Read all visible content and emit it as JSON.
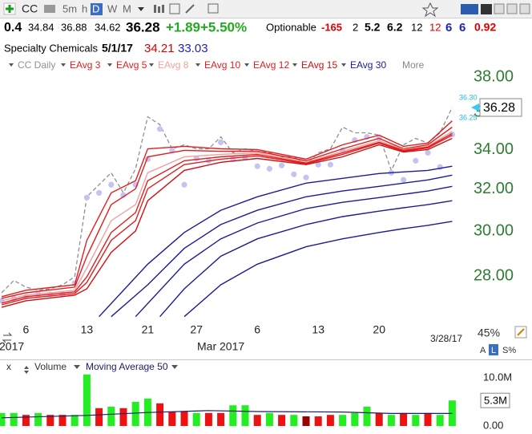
{
  "toolbar": {
    "symbol": "CC",
    "intervals": [
      "5m",
      "h",
      "D",
      "W",
      "M"
    ]
  },
  "quote": {
    "row1": [
      "0.4",
      "34.84",
      "36.88",
      "34.62",
      "36.28",
      "+1.89",
      "+5.50%",
      "Optionable",
      "-165",
      "2",
      "5.2",
      "6.2",
      "12",
      "12",
      "6",
      "6",
      "0.92"
    ],
    "row2": [
      "Specialty Chemicals",
      "5/1/17",
      "34.21",
      "33.03"
    ]
  },
  "legend_more": "More",
  "price_tags": [
    "36.30",
    "36.25"
  ],
  "side": {
    "zoom": "45%",
    "buttons": [
      "A",
      "L",
      "S%"
    ]
  },
  "volume_header": {
    "close": "x"
  },
  "chart_data": [
    {
      "type": "line",
      "log_scale": true,
      "x": [
        "2017-02-02",
        "2017-02-03",
        "2017-02-06",
        "2017-02-07",
        "2017-02-08",
        "2017-02-09",
        "2017-02-10",
        "2017-02-13",
        "2017-02-14",
        "2017-02-15",
        "2017-02-16",
        "2017-02-17",
        "2017-02-21",
        "2017-02-22",
        "2017-02-23",
        "2017-02-24",
        "2017-02-27",
        "2017-02-28",
        "2017-03-01",
        "2017-03-02",
        "2017-03-03",
        "2017-03-06",
        "2017-03-07",
        "2017-03-08",
        "2017-03-09",
        "2017-03-10",
        "2017-03-13",
        "2017-03-14",
        "2017-03-15",
        "2017-03-16",
        "2017-03-17",
        "2017-03-20",
        "2017-03-21",
        "2017-03-22",
        "2017-03-23",
        "2017-03-24",
        "2017-03-27",
        "2017-03-28"
      ],
      "xticks": [
        {
          "value": "2017-02-06",
          "label": "6"
        },
        {
          "value": "2017-02-13",
          "label": "13"
        },
        {
          "value": "2017-02-21",
          "label": "21"
        },
        {
          "value": "2017-02-27",
          "label": "27"
        },
        {
          "value": "2017-03-06",
          "label": "6"
        },
        {
          "value": "2017-03-13",
          "label": "13"
        },
        {
          "value": "2017-03-20",
          "label": "20"
        }
      ],
      "xticks_major": [
        {
          "value": "2017-02-02",
          "label": "2017"
        },
        {
          "value": "2017-03-01",
          "label": "Mar 2017"
        }
      ],
      "last_date_label": "3/28/17",
      "ylim": [
        26.3,
        39.5
      ],
      "yticks": [
        {
          "value": 28,
          "label": "28.00"
        },
        {
          "value": 30,
          "label": "30.00"
        },
        {
          "value": 32,
          "label": "32.00"
        },
        {
          "value": 34,
          "label": "34.00"
        },
        {
          "value": 36,
          "label": "36.00"
        },
        {
          "value": 38,
          "label": "38.00"
        }
      ],
      "last_value_label": "36.28",
      "series": [
        {
          "name": "CC Daily",
          "color": "#909090",
          "dash": true,
          "values": [
            27.29,
            27.81,
            27.53,
            27.4,
            27.46,
            27.63,
            27.97,
            31.63,
            32.22,
            32.82,
            31.82,
            33.02,
            35.77,
            35.33,
            34.05,
            34.26,
            34.05,
            34.05,
            34.68,
            33.84,
            34.05,
            33.92,
            33.84,
            33.63,
            33.63,
            33.23,
            33.84,
            34.05,
            35.2,
            34.9,
            34.9,
            34.77,
            32.94,
            34.26,
            34.6,
            34.35,
            34.9,
            36.28
          ]
        },
        {
          "type": "scatter",
          "color": "#c4c4f2",
          "values": [
            26.96,
            27.06,
            27.13,
            27.23,
            27.23,
            27.23,
            27.7,
            31.59,
            31.82,
            32.22,
            31.71,
            32.22,
            33.51,
            35.1,
            33.97,
            32.22,
            33.55,
            33.43,
            34.39,
            33.51,
            33.59,
            33.15,
            33.02,
            33.19,
            32.74,
            32.58,
            33.23,
            33.23,
            33.97,
            34.51,
            34.68,
            34.6,
            32.82,
            32.46,
            33.43,
            33.84,
            33.11,
            34.81
          ]
        },
        {
          "name": "EAvg 3",
          "color": "#e02020",
          "x": [
            "2017-02-02",
            "2017-02-06",
            "2017-02-10",
            "2017-02-13",
            "2017-02-15",
            "2017-02-17",
            "2017-02-21",
            "2017-02-24",
            "2017-03-01",
            "2017-03-06",
            "2017-03-10",
            "2017-03-15",
            "2017-03-20",
            "2017-03-22",
            "2017-03-24",
            "2017-03-28"
          ],
          "values": [
            27.13,
            27.4,
            27.63,
            29.58,
            31.82,
            32.42,
            34.05,
            34.18,
            34.05,
            34.01,
            33.51,
            34.26,
            34.77,
            34.18,
            34.35,
            35.54
          ]
        },
        {
          "name": "EAvg 5",
          "color": "#e02020",
          "x": [
            "2017-02-02",
            "2017-02-06",
            "2017-02-10",
            "2017-02-13",
            "2017-02-15",
            "2017-02-17",
            "2017-02-21",
            "2017-02-24",
            "2017-03-01",
            "2017-03-06",
            "2017-03-10",
            "2017-03-15",
            "2017-03-20",
            "2017-03-22",
            "2017-03-24",
            "2017-03-28"
          ],
          "values": [
            27.06,
            27.29,
            27.53,
            28.87,
            31.25,
            32.02,
            33.63,
            33.97,
            33.92,
            33.92,
            33.43,
            34.05,
            34.6,
            34.05,
            34.26,
            35.2
          ]
        },
        {
          "name": "EAvg 8",
          "color": "#f2a0a0",
          "x": [
            "2017-02-02",
            "2017-02-06",
            "2017-02-10",
            "2017-02-13",
            "2017-02-15",
            "2017-02-17",
            "2017-02-21",
            "2017-02-24",
            "2017-03-01",
            "2017-03-06",
            "2017-03-10",
            "2017-03-15",
            "2017-03-20",
            "2017-03-22",
            "2017-03-24",
            "2017-03-28"
          ],
          "values": [
            26.96,
            27.19,
            27.4,
            28.35,
            30.49,
            31.25,
            32.82,
            33.63,
            33.76,
            33.84,
            33.35,
            33.92,
            34.47,
            34.01,
            34.18,
            34.97
          ]
        },
        {
          "name": "EAvg 10",
          "color": "#e02020",
          "x": [
            "2017-02-02",
            "2017-02-06",
            "2017-02-10",
            "2017-02-13",
            "2017-02-15",
            "2017-02-17",
            "2017-02-21",
            "2017-02-24",
            "2017-03-01",
            "2017-03-06",
            "2017-03-10",
            "2017-03-15",
            "2017-03-20",
            "2017-03-22",
            "2017-03-24",
            "2017-03-28"
          ],
          "values": [
            26.86,
            27.13,
            27.33,
            27.97,
            29.94,
            30.87,
            32.42,
            33.43,
            33.63,
            33.76,
            33.31,
            33.84,
            34.39,
            33.97,
            34.14,
            34.86
          ]
        },
        {
          "name": "EAvg 12",
          "color": "#e02020",
          "x": [
            "2017-02-02",
            "2017-02-06",
            "2017-02-10",
            "2017-02-13",
            "2017-02-15",
            "2017-02-17",
            "2017-02-21",
            "2017-02-24",
            "2017-03-01",
            "2017-03-06",
            "2017-03-10",
            "2017-03-15",
            "2017-03-20",
            "2017-03-22",
            "2017-03-24",
            "2017-03-28"
          ],
          "values": [
            26.79,
            27.06,
            27.26,
            27.73,
            29.58,
            30.49,
            32.02,
            33.23,
            33.51,
            33.68,
            33.27,
            33.76,
            34.35,
            33.92,
            34.09,
            34.77
          ]
        },
        {
          "name": "EAvg 15",
          "color": "#d01010",
          "x": [
            "2017-02-02",
            "2017-02-06",
            "2017-02-10",
            "2017-02-13",
            "2017-02-15",
            "2017-02-17",
            "2017-02-21",
            "2017-02-24",
            "2017-03-01",
            "2017-03-06",
            "2017-03-10",
            "2017-03-15",
            "2017-03-20",
            "2017-03-22",
            "2017-03-24",
            "2017-03-28"
          ],
          "values": [
            26.69,
            26.96,
            27.19,
            27.46,
            29.04,
            30.01,
            31.44,
            32.94,
            33.35,
            33.55,
            33.23,
            33.63,
            34.26,
            33.88,
            34.01,
            34.6
          ]
        },
        {
          "name": "EAvg 30",
          "color": "#1c1c96",
          "x": [
            "2017-02-14",
            "2017-02-21",
            "2017-02-24",
            "2017-03-01",
            "2017-03-06",
            "2017-03-10",
            "2017-03-15",
            "2017-03-20",
            "2017-03-22",
            "2017-03-24",
            "2017-03-28"
          ],
          "values": [
            26.31,
            28.52,
            29.94,
            30.98,
            31.63,
            32.3,
            32.54,
            32.78,
            32.86,
            32.94,
            33.15
          ]
        },
        {
          "color": "#1c1c96",
          "x": [
            "2017-02-15",
            "2017-02-21",
            "2017-02-24",
            "2017-03-01",
            "2017-03-06",
            "2017-03-10",
            "2017-03-15",
            "2017-03-20",
            "2017-03-22",
            "2017-03-24",
            "2017-03-28"
          ],
          "values": [
            26.31,
            27.63,
            29.22,
            30.31,
            30.98,
            31.63,
            31.91,
            32.14,
            32.3,
            32.46,
            32.7
          ]
        },
        {
          "color": "#1c1c96",
          "x": [
            "2017-02-17",
            "2017-02-24",
            "2017-03-01",
            "2017-03-06",
            "2017-03-10",
            "2017-03-15",
            "2017-03-20",
            "2017-03-22",
            "2017-03-24",
            "2017-03-28"
          ],
          "values": [
            26.31,
            28.52,
            29.65,
            30.38,
            31.06,
            31.36,
            31.59,
            31.75,
            31.91,
            32.14
          ]
        },
        {
          "color": "#1c1c96",
          "x": [
            "2017-02-22",
            "2017-02-24",
            "2017-03-01",
            "2017-03-06",
            "2017-03-10",
            "2017-03-15",
            "2017-03-20",
            "2017-03-22",
            "2017-03-24",
            "2017-03-28"
          ],
          "values": [
            26.31,
            27.46,
            28.87,
            29.65,
            30.31,
            30.68,
            30.94,
            31.1,
            31.25,
            31.44
          ]
        },
        {
          "color": "#1c1c96",
          "x": [
            "2017-02-24",
            "2017-03-01",
            "2017-03-06",
            "2017-03-10",
            "2017-03-15",
            "2017-03-20",
            "2017-03-22",
            "2017-03-24",
            "2017-03-28"
          ],
          "values": [
            26.31,
            27.63,
            28.52,
            29.29,
            29.65,
            29.94,
            30.12,
            30.27,
            30.46
          ]
        }
      ]
    },
    {
      "type": "bar",
      "title": "Volume",
      "values": [
        2700000,
        2700000,
        2300000,
        2700000,
        2300000,
        2300000,
        2300000,
        10700000,
        3700000,
        4000000,
        3700000,
        5000000,
        5700000,
        4700000,
        3000000,
        3000000,
        2700000,
        2700000,
        2700000,
        4300000,
        4300000,
        2300000,
        2700000,
        2300000,
        2300000,
        2000000,
        2000000,
        2300000,
        2300000,
        2700000,
        4000000,
        2700000,
        2300000,
        2700000,
        2300000,
        2700000,
        2300000,
        5300000
      ],
      "colors": [
        "#22ee22",
        "#22ee22",
        "#ee1111",
        "#22ee22",
        "#ee1111",
        "#ee1111",
        "#22ee22",
        "#22ee22",
        "#ee1111",
        "#22ee22",
        "#ee1111",
        "#22ee22",
        "#22ee22",
        "#ee1111",
        "#ee1111",
        "#ee1111",
        "#22ee22",
        "#ee1111",
        "#ee1111",
        "#22ee22",
        "#22ee22",
        "#ee1111",
        "#22ee22",
        "#ee1111",
        "#22ee22",
        "#990000",
        "#ee1111",
        "#ee1111",
        "#22ee22",
        "#22ee22",
        "#22ee22",
        "#ee1111",
        "#22ee22",
        "#ee1111",
        "#22ee22",
        "#ee1111",
        "#22ee22",
        "#22ee22"
      ],
      "last_value_label": "5.3M",
      "ylim": [
        0,
        10830000
      ],
      "yticks": [
        {
          "value": 10000000,
          "label": "10.0M"
        },
        {
          "value": 0,
          "label": "0.00"
        }
      ],
      "series": [
        {
          "name": "Moving Average 50",
          "color": "#1c1c6e",
          "x": [
            "2017-02-02",
            "2017-02-13",
            "2017-02-21",
            "2017-02-28",
            "2017-03-06",
            "2017-03-15",
            "2017-03-21",
            "2017-03-28"
          ],
          "values": [
            1700000,
            2200000,
            2800000,
            3200000,
            3000000,
            2900000,
            2600000,
            2600000
          ]
        }
      ]
    }
  ]
}
